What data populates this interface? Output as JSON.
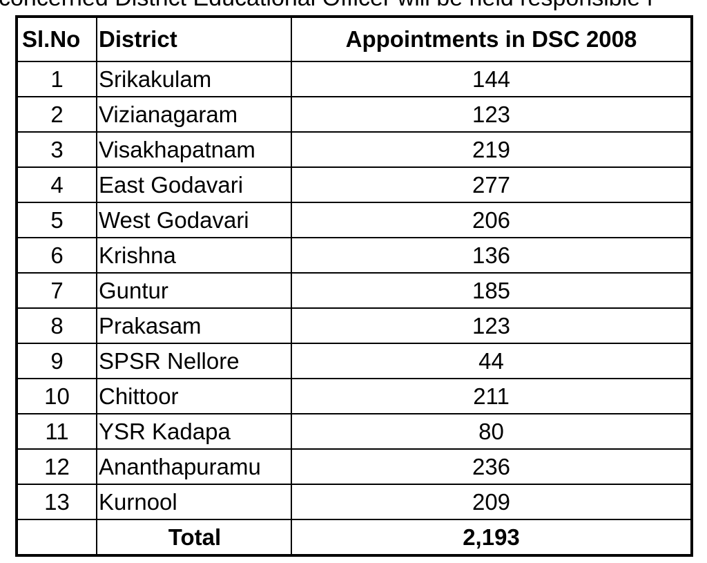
{
  "top_text": "concerned District Educational Officer will be held responsible f",
  "table": {
    "headers": [
      "Sl.No",
      "District",
      "Appointments in DSC 2008"
    ],
    "rows": [
      [
        "1",
        "Srikakulam",
        "144"
      ],
      [
        "2",
        "Vizianagaram",
        "123"
      ],
      [
        "3",
        "Visakhapatnam",
        "219"
      ],
      [
        "4",
        "East Godavari",
        "277"
      ],
      [
        "5",
        "West Godavari",
        "206"
      ],
      [
        "6",
        "Krishna",
        "136"
      ],
      [
        "7",
        "Guntur",
        "185"
      ],
      [
        "8",
        "Prakasam",
        "123"
      ],
      [
        "9",
        "SPSR Nellore",
        "44"
      ],
      [
        "10",
        "Chittoor",
        "211"
      ],
      [
        "11",
        "YSR Kadapa",
        "80"
      ],
      [
        "12",
        "Ananthapuramu",
        "236"
      ],
      [
        "13",
        "Kurnool",
        "209"
      ]
    ],
    "total_label": "Total",
    "total_value": "2,193"
  }
}
